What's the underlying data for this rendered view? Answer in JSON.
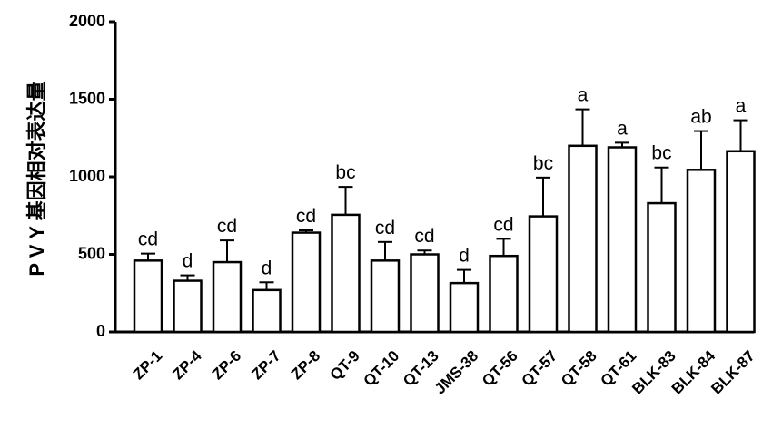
{
  "chart_data": {
    "type": "bar",
    "title": "",
    "xlabel": "",
    "ylabel": "P V Y 基因相对表达量",
    "ylim": [
      0,
      2000
    ],
    "yticks": [
      0,
      500,
      1000,
      1500,
      2000
    ],
    "grid": false,
    "categories": [
      "ZP-1",
      "ZP-4",
      "ZP-6",
      "ZP-7",
      "ZP-8",
      "QT-9",
      "QT-10",
      "QT-13",
      "JMS-38",
      "QT-56",
      "QT-57",
      "QT-58",
      "QT-61",
      "BLK-83",
      "BLK-84",
      "BLK-87"
    ],
    "values": [
      460,
      330,
      450,
      270,
      640,
      755,
      460,
      500,
      315,
      490,
      745,
      1200,
      1190,
      830,
      1045,
      1165
    ],
    "errors": [
      45,
      35,
      140,
      50,
      15,
      180,
      120,
      25,
      85,
      110,
      250,
      235,
      30,
      230,
      250,
      200
    ],
    "significance": [
      "cd",
      "d",
      "cd",
      "d",
      "cd",
      "bc",
      "cd",
      "cd",
      "d",
      "cd",
      "bc",
      "a",
      "a",
      "bc",
      "ab",
      "a"
    ],
    "colors": {
      "bar_fill": "#ffffff",
      "bar_stroke": "#000000",
      "axis": "#000000"
    }
  }
}
